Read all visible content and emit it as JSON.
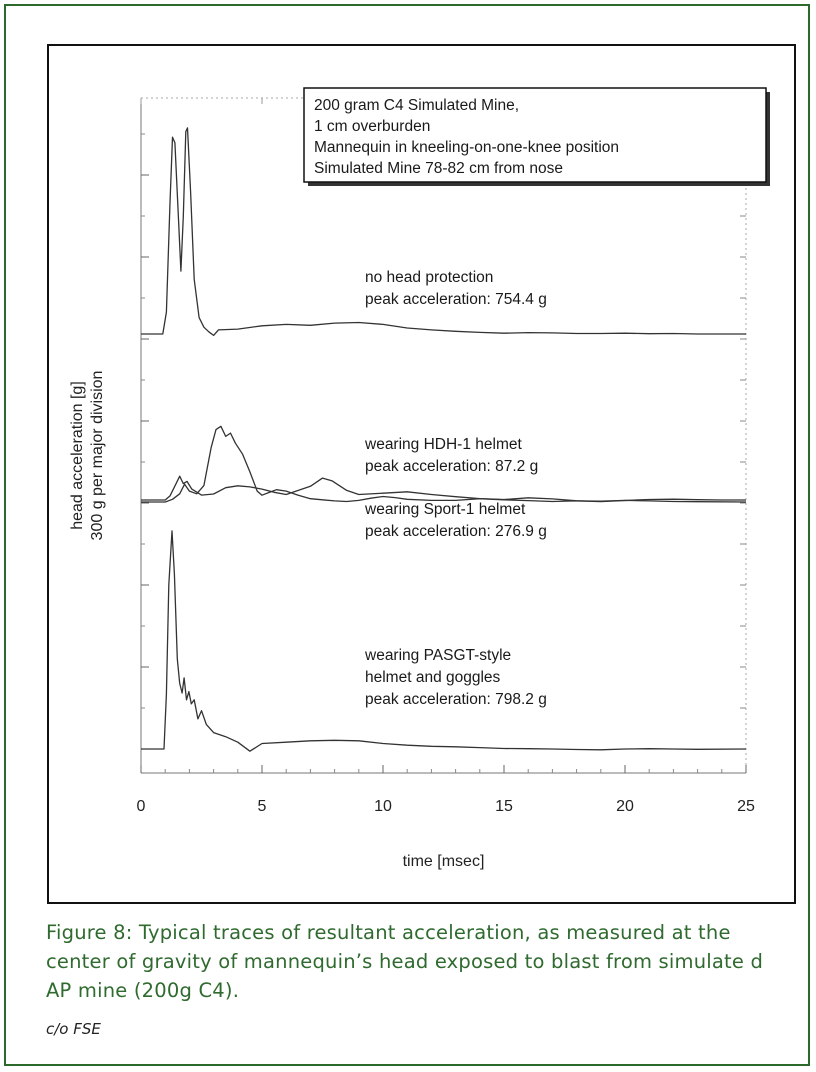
{
  "chart_data": {
    "type": "line",
    "title": "",
    "xlabel": "time [msec]",
    "ylabel": "head acceleration [g]",
    "ylabel_sub": "300 g per major division",
    "xlim": [
      0,
      25
    ],
    "x_ticks": [
      0,
      5,
      10,
      15,
      20,
      25
    ],
    "grid": false,
    "info_box": [
      "200 gram C4 Simulated Mine,",
      "1 cm overburden",
      "Mannequin in kneeling-on-one-knee position",
      "Simulated Mine 78-82 cm from nose"
    ],
    "series": [
      {
        "label_lines": [
          "no head protection",
          "peak acceleration: 754.4 g"
        ],
        "peak_g": 754.4,
        "points": [
          [
            0,
            0
          ],
          [
            0.9,
            0
          ],
          [
            1.05,
            80
          ],
          [
            1.2,
            480
          ],
          [
            1.3,
            720
          ],
          [
            1.4,
            700
          ],
          [
            1.55,
            420
          ],
          [
            1.65,
            230
          ],
          [
            1.75,
            430
          ],
          [
            1.85,
            740
          ],
          [
            1.92,
            754
          ],
          [
            2.05,
            520
          ],
          [
            2.2,
            200
          ],
          [
            2.4,
            60
          ],
          [
            2.6,
            25
          ],
          [
            2.8,
            8
          ],
          [
            3.0,
            -5
          ],
          [
            3.2,
            15
          ],
          [
            4,
            18
          ],
          [
            5,
            30
          ],
          [
            6,
            35
          ],
          [
            7,
            32
          ],
          [
            8,
            40
          ],
          [
            9,
            42
          ],
          [
            10,
            35
          ],
          [
            11,
            22
          ],
          [
            12,
            15
          ],
          [
            13,
            10
          ],
          [
            14,
            6
          ],
          [
            15,
            3
          ],
          [
            16,
            5
          ],
          [
            17,
            4
          ],
          [
            18,
            2
          ],
          [
            19,
            2
          ],
          [
            20,
            3
          ],
          [
            21,
            1
          ],
          [
            22,
            2
          ],
          [
            23,
            0
          ],
          [
            25,
            0
          ]
        ]
      },
      {
        "label_lines": [
          "wearing HDH-1 helmet",
          "peak acceleration: 87.2 g"
        ],
        "peak_g": 87.2,
        "points": [
          [
            0,
            0
          ],
          [
            1.0,
            0
          ],
          [
            1.2,
            15
          ],
          [
            1.45,
            60
          ],
          [
            1.6,
            87
          ],
          [
            1.75,
            60
          ],
          [
            1.9,
            68
          ],
          [
            2.1,
            40
          ],
          [
            2.5,
            18
          ],
          [
            3,
            22
          ],
          [
            3.5,
            45
          ],
          [
            4,
            52
          ],
          [
            4.5,
            48
          ],
          [
            5,
            40
          ],
          [
            5.5,
            28
          ],
          [
            6,
            20
          ],
          [
            6.5,
            35
          ],
          [
            7,
            50
          ],
          [
            7.5,
            80
          ],
          [
            7.9,
            70
          ],
          [
            8.5,
            35
          ],
          [
            9,
            20
          ],
          [
            10,
            25
          ],
          [
            11,
            30
          ],
          [
            12,
            20
          ],
          [
            13,
            12
          ],
          [
            14,
            5
          ],
          [
            15,
            2
          ],
          [
            16,
            8
          ],
          [
            17,
            4
          ],
          [
            18,
            -3
          ],
          [
            19,
            -6
          ],
          [
            20,
            -2
          ],
          [
            21,
            2
          ],
          [
            22,
            3
          ],
          [
            23,
            1
          ],
          [
            24,
            0
          ],
          [
            25,
            0
          ]
        ]
      },
      {
        "label_lines": [
          "wearing Sport-1 helmet",
          "peak acceleration: 276.9 g"
        ],
        "peak_g": 276.9,
        "points": [
          [
            0,
            0
          ],
          [
            1.0,
            0
          ],
          [
            1.3,
            10
          ],
          [
            1.6,
            30
          ],
          [
            1.8,
            65
          ],
          [
            2.0,
            40
          ],
          [
            2.3,
            30
          ],
          [
            2.6,
            60
          ],
          [
            2.9,
            200
          ],
          [
            3.1,
            265
          ],
          [
            3.3,
            277
          ],
          [
            3.5,
            240
          ],
          [
            3.7,
            252
          ],
          [
            3.9,
            215
          ],
          [
            4.2,
            175
          ],
          [
            4.5,
            110
          ],
          [
            4.8,
            40
          ],
          [
            5.0,
            25
          ],
          [
            5.3,
            35
          ],
          [
            5.6,
            45
          ],
          [
            6,
            40
          ],
          [
            6.5,
            25
          ],
          [
            7,
            12
          ],
          [
            7.5,
            8
          ],
          [
            8,
            4
          ],
          [
            8.5,
            2
          ],
          [
            9,
            6
          ],
          [
            9.5,
            14
          ],
          [
            10,
            20
          ],
          [
            10.5,
            16
          ],
          [
            11,
            10
          ],
          [
            12,
            6
          ],
          [
            13,
            6
          ],
          [
            14,
            12
          ],
          [
            15,
            8
          ],
          [
            16,
            5
          ],
          [
            17,
            2
          ],
          [
            18,
            4
          ],
          [
            19,
            3
          ],
          [
            20,
            6
          ],
          [
            21,
            4
          ],
          [
            22,
            2
          ],
          [
            23,
            1
          ],
          [
            25,
            0
          ]
        ]
      },
      {
        "label_lines": [
          "wearing PASGT-style",
          "helmet and goggles",
          "peak acceleration: 798.2 g"
        ],
        "peak_g": 798.2,
        "points": [
          [
            0,
            0
          ],
          [
            0.95,
            0
          ],
          [
            1.05,
            200
          ],
          [
            1.15,
            600
          ],
          [
            1.28,
            798
          ],
          [
            1.38,
            640
          ],
          [
            1.5,
            330
          ],
          [
            1.6,
            240
          ],
          [
            1.7,
            205
          ],
          [
            1.78,
            260
          ],
          [
            1.88,
            180
          ],
          [
            1.98,
            210
          ],
          [
            2.08,
            165
          ],
          [
            2.2,
            180
          ],
          [
            2.35,
            110
          ],
          [
            2.5,
            140
          ],
          [
            2.7,
            90
          ],
          [
            3,
            60
          ],
          [
            3.5,
            45
          ],
          [
            4,
            25
          ],
          [
            4.5,
            -8
          ],
          [
            5,
            20
          ],
          [
            6,
            25
          ],
          [
            7,
            30
          ],
          [
            8,
            32
          ],
          [
            9,
            30
          ],
          [
            10,
            20
          ],
          [
            11,
            14
          ],
          [
            12,
            10
          ],
          [
            13,
            8
          ],
          [
            14,
            5
          ],
          [
            15,
            2
          ],
          [
            16,
            1
          ],
          [
            17,
            0
          ],
          [
            18,
            -2
          ],
          [
            19,
            -3
          ],
          [
            20,
            0
          ],
          [
            21,
            1
          ],
          [
            22,
            0
          ],
          [
            23,
            -1
          ],
          [
            25,
            0
          ]
        ]
      }
    ]
  },
  "caption": "Figure 8: Typical traces of resultant acceleration, as measured at the center of gravity of mannequin’s head exposed to blast from simulate d AP mine (200g C4).",
  "credit": "c/o FSE",
  "colors": {
    "caption_text": "#2f6a2f",
    "outer_border": "#2c6a2c",
    "trace": "#333333",
    "axes": "#444444"
  }
}
